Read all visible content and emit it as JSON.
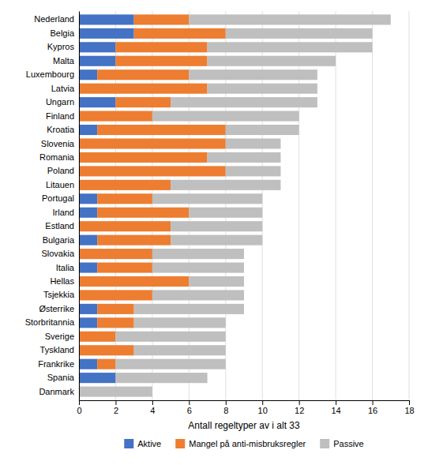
{
  "chart_data": {
    "type": "bar",
    "orientation": "horizontal",
    "stacked": true,
    "categories": [
      "Nederland",
      "Belgia",
      "Kypros",
      "Malta",
      "Luxembourg",
      "Latvia",
      "Ungarn",
      "Finland",
      "Kroatia",
      "Slovenia",
      "Romania",
      "Poland",
      "Litauen",
      "Portugal",
      "Irland",
      "Estland",
      "Bulgaria",
      "Slovakia",
      "Italia",
      "Hellas",
      "Tsjekkia",
      "Østerrike",
      "Storbritannia",
      "Sverige",
      "Tyskland",
      "Frankrike",
      "Spania",
      "Danmark"
    ],
    "series": [
      {
        "name": "Aktive",
        "color": "#4472C4",
        "values": [
          3,
          3,
          2,
          2,
          1,
          0,
          2,
          0,
          1,
          0,
          0,
          0,
          0,
          1,
          1,
          0,
          1,
          0,
          1,
          0,
          0,
          1,
          1,
          0,
          0,
          1,
          2,
          0
        ]
      },
      {
        "name": "Mangel på anti-misbruksregler",
        "color": "#ED7D31",
        "values": [
          3,
          5,
          5,
          5,
          5,
          7,
          3,
          4,
          7,
          8,
          7,
          8,
          5,
          3,
          5,
          5,
          4,
          4,
          3,
          6,
          4,
          2,
          2,
          2,
          3,
          1,
          0,
          0
        ]
      },
      {
        "name": "Passive",
        "color": "#BFBFBF",
        "values": [
          11,
          8,
          9,
          7,
          7,
          6,
          8,
          8,
          4,
          3,
          4,
          3,
          6,
          6,
          4,
          5,
          5,
          5,
          5,
          3,
          5,
          6,
          5,
          6,
          5,
          6,
          5,
          4
        ]
      }
    ],
    "xlabel": "Antall regeltyper av i alt 33",
    "xlim": [
      0,
      18
    ],
    "xticks": [
      0,
      2,
      4,
      6,
      8,
      10,
      12,
      14,
      16,
      18
    ],
    "grid": true,
    "legend": "bottom"
  }
}
